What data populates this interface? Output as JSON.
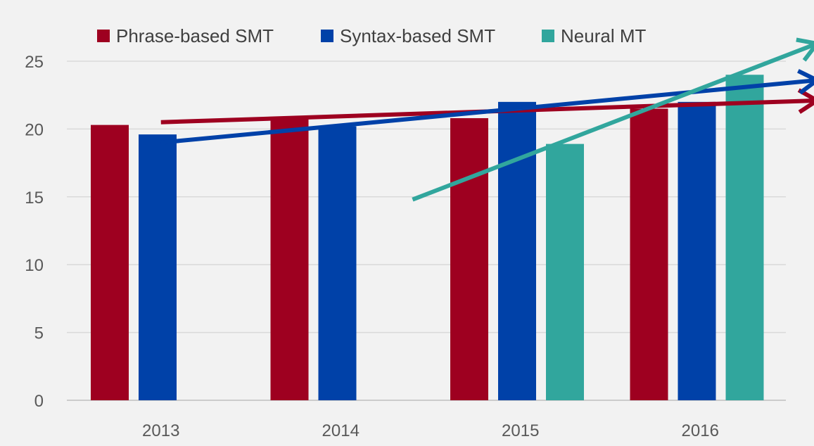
{
  "chart_data": {
    "type": "bar",
    "title": "",
    "xlabel": "",
    "ylabel": "",
    "categories": [
      "2013",
      "2014",
      "2015",
      "2016"
    ],
    "ylim": [
      0,
      25
    ],
    "yticks": [
      0,
      5,
      10,
      15,
      20,
      25
    ],
    "grid": true,
    "legend_position": "top",
    "series": [
      {
        "name": "Phrase-based SMT",
        "color": "#9e0020",
        "values": [
          20.3,
          20.9,
          20.8,
          21.5
        ]
      },
      {
        "name": "Syntax-based SMT",
        "color": "#0041a8",
        "values": [
          19.6,
          20.2,
          22.0,
          22.0
        ]
      },
      {
        "name": "Neural MT",
        "color": "#31a69d",
        "values": [
          null,
          null,
          18.9,
          24.0
        ]
      }
    ],
    "trend_arrows": [
      {
        "series": "Phrase-based SMT",
        "color": "#9e0020",
        "start": {
          "x": 2013.0,
          "y": 20.5
        },
        "end": {
          "x": 2016.65,
          "y": 22.1
        }
      },
      {
        "series": "Syntax-based SMT",
        "color": "#0041a8",
        "start": {
          "x": 2013.0,
          "y": 19.0
        },
        "end": {
          "x": 2016.65,
          "y": 23.6
        }
      },
      {
        "series": "Neural MT",
        "color": "#31a69d",
        "start": {
          "x": 2014.4,
          "y": 14.8
        },
        "end": {
          "x": 2016.65,
          "y": 26.3
        }
      }
    ]
  }
}
